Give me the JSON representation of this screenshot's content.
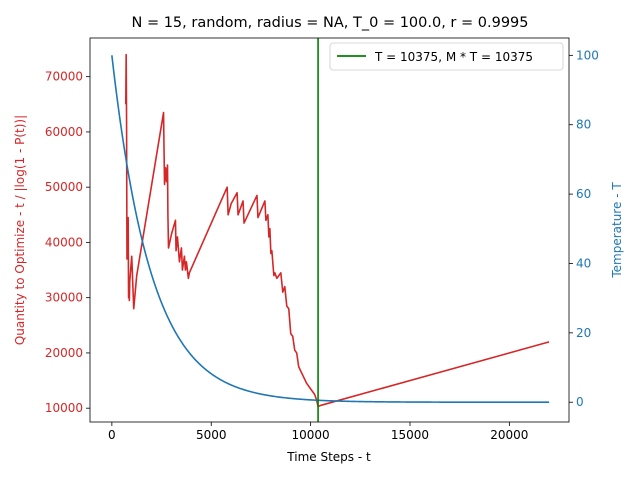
{
  "chart_data": {
    "type": "line",
    "title": "N = 15, random, radius = NA, T_0 = 100.0, r = 0.9995",
    "xlabel": "Time Steps - t",
    "ylabel_left": "Quantity to Optimize - t / |log(1 - P(t))|",
    "ylabel_right": "Temperature - T",
    "xlim": [
      -1100,
      23000
    ],
    "ylim_left": [
      7500,
      77000
    ],
    "ylim_right": [
      -5.7,
      105
    ],
    "xticks": [
      0,
      5000,
      10000,
      15000,
      20000
    ],
    "yticks_left": [
      10000,
      20000,
      30000,
      40000,
      50000,
      60000,
      70000
    ],
    "yticks_right": [
      0,
      20,
      40,
      60,
      80,
      100
    ],
    "grid": false,
    "legend_position": "top-right",
    "colors": {
      "quantity": "#d62728",
      "temperature": "#1f77b4",
      "marker": "#008000",
      "left_axis": "#d62728",
      "right_axis": "#1f77b4"
    },
    "vline": {
      "x": 10375,
      "label": "T = 10375, M * T = 10375"
    },
    "temperature": {
      "T0": 100.0,
      "r": 0.9995,
      "t_max": 22000
    },
    "quantity_series": {
      "x": [
        700,
        720,
        740,
        760,
        780,
        800,
        820,
        840,
        860,
        880,
        900,
        1000,
        1100,
        1150,
        1250,
        2600,
        2620,
        2650,
        2700,
        2750,
        2800,
        2820,
        2850,
        3000,
        3200,
        3230,
        3300,
        3400,
        3500,
        3550,
        3650,
        3700,
        3750,
        3850,
        3900,
        5800,
        5850,
        6000,
        6300,
        6350,
        6600,
        6650,
        7300,
        7350,
        7700,
        7750,
        7850,
        7900,
        7950,
        8000,
        8050,
        8150,
        8200,
        8300,
        8500,
        8600,
        8700,
        8800,
        8900,
        9000,
        9100,
        9200,
        9300,
        9400,
        9600,
        9800,
        10000,
        10200,
        10300,
        10375,
        10500,
        22000
      ],
      "y": [
        65000,
        74000,
        62000,
        37000,
        42000,
        40000,
        44500,
        30000,
        31000,
        29500,
        33000,
        37500,
        28000,
        30000,
        34000,
        63500,
        58000,
        50500,
        53500,
        51000,
        54000,
        45000,
        39000,
        41500,
        44000,
        38500,
        41000,
        36500,
        39000,
        35000,
        37500,
        35000,
        36500,
        33500,
        34500,
        50000,
        45000,
        47000,
        49000,
        45000,
        47500,
        43500,
        48500,
        44500,
        47500,
        44000,
        45000,
        41000,
        42500,
        38000,
        38500,
        34000,
        34500,
        33500,
        34500,
        31000,
        32000,
        28500,
        28000,
        23500,
        23000,
        20500,
        20000,
        17500,
        16000,
        14500,
        13500,
        12500,
        11500,
        10300,
        10500,
        22000
      ]
    }
  }
}
